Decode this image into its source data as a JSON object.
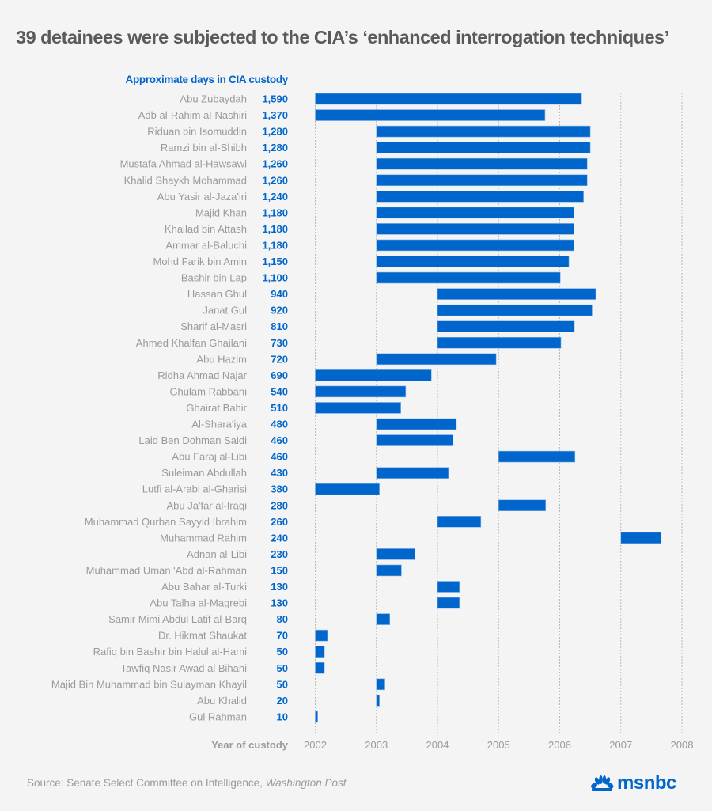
{
  "title": "39 detainees were subjected to the CIA’s ‘enhanced interrogation techniques’",
  "source": {
    "prefix": "Source: Senate Select Committee on Intelligence, ",
    "publication": "Washington Post"
  },
  "logo": {
    "text": "msnbc",
    "icon": "nbc-peacock-icon"
  },
  "colors": {
    "bar": "#0066cc",
    "value_text": "#0066cc",
    "name_text": "#9a9a9a",
    "background": "#f4f4f4",
    "title": "#5a5a5a"
  },
  "chart_data": {
    "type": "bar",
    "orientation": "horizontal-range",
    "title": "39 detainees were subjected to the CIA’s ‘enhanced interrogation techniques’",
    "value_label_header": "Approximate days in CIA custody",
    "xlabel": "Year of custody",
    "xlim": [
      2002,
      2008
    ],
    "xticks": [
      "2002",
      "2003",
      "2004",
      "2005",
      "2006",
      "2007",
      "2008"
    ],
    "grid": true,
    "rows": [
      {
        "name": "Abu Zubaydah",
        "days": "1,590",
        "start": 2002.0,
        "end": 2006.36
      },
      {
        "name": "Adb al-Rahim al-Nashiri",
        "days": "1,370",
        "start": 2002.0,
        "end": 2005.76
      },
      {
        "name": "Riduan bin Isomuddin",
        "days": "1,280",
        "start": 2003.0,
        "end": 2006.5
      },
      {
        "name": "Ramzi bin al-Shibh",
        "days": "1,280",
        "start": 2003.0,
        "end": 2006.5
      },
      {
        "name": "Mustafa Ahmad al-Hawsawi",
        "days": "1,260",
        "start": 2003.0,
        "end": 2006.45
      },
      {
        "name": "Khalid Shaykh Mohammad",
        "days": "1,260",
        "start": 2003.0,
        "end": 2006.45
      },
      {
        "name": "Abu Yasir al-Jaza'iri",
        "days": "1,240",
        "start": 2003.0,
        "end": 2006.39
      },
      {
        "name": "Majid Khan",
        "days": "1,180",
        "start": 2003.0,
        "end": 2006.23
      },
      {
        "name": "Khallad bin Attash",
        "days": "1,180",
        "start": 2003.0,
        "end": 2006.23
      },
      {
        "name": "Ammar al-Baluchi",
        "days": "1,180",
        "start": 2003.0,
        "end": 2006.23
      },
      {
        "name": "Mohd Farik bin Amin",
        "days": "1,150",
        "start": 2003.0,
        "end": 2006.15
      },
      {
        "name": "Bashir bin Lap",
        "days": "1,100",
        "start": 2003.0,
        "end": 2006.01
      },
      {
        "name": "Hassan Ghul",
        "days": "940",
        "start": 2004.0,
        "end": 2006.59
      },
      {
        "name": "Janat Gul",
        "days": "920",
        "start": 2004.0,
        "end": 2006.53
      },
      {
        "name": "Sharif al-Masri",
        "days": "810",
        "start": 2004.0,
        "end": 2006.24
      },
      {
        "name": "Ahmed Khalfan Ghailani",
        "days": "730",
        "start": 2004.0,
        "end": 2006.02
      },
      {
        "name": "Abu Hazim",
        "days": "720",
        "start": 2003.0,
        "end": 2004.96
      },
      {
        "name": "Ridha Ahmad Najar",
        "days": "690",
        "start": 2002.0,
        "end": 2003.9
      },
      {
        "name": "Ghulam Rabbani",
        "days": "540",
        "start": 2002.0,
        "end": 2003.48
      },
      {
        "name": "Ghairat Bahir",
        "days": "510",
        "start": 2002.0,
        "end": 2003.4
      },
      {
        "name": "Al-Shara'iya",
        "days": "480",
        "start": 2003.0,
        "end": 2004.31
      },
      {
        "name": "Laid Ben Dohman Saidi",
        "days": "460",
        "start": 2003.0,
        "end": 2004.25
      },
      {
        "name": "Abu Faraj al-Libi",
        "days": "460",
        "start": 2005.0,
        "end": 2006.25
      },
      {
        "name": "Suleiman Abdullah",
        "days": "430",
        "start": 2003.0,
        "end": 2004.18
      },
      {
        "name": "Lutfi al-Arabi al-Gharisi",
        "days": "380",
        "start": 2002.0,
        "end": 2003.05
      },
      {
        "name": "Abu Ja'far al-Iraqi",
        "days": "280",
        "start": 2005.0,
        "end": 2005.77
      },
      {
        "name": "Muhammad Qurban Sayyid Ibrahim",
        "days": "260",
        "start": 2004.0,
        "end": 2004.71
      },
      {
        "name": "Muhammad Rahim",
        "days": "240",
        "start": 2007.0,
        "end": 2007.66
      },
      {
        "name": "Adnan al-Libi",
        "days": "230",
        "start": 2003.0,
        "end": 2003.63
      },
      {
        "name": "Muhammad Uman 'Abd al-Rahman",
        "days": "150",
        "start": 2003.0,
        "end": 2003.41
      },
      {
        "name": "Abu Bahar al-Turki",
        "days": "130",
        "start": 2004.0,
        "end": 2004.36
      },
      {
        "name": "Abu Talha al-Magrebi",
        "days": "130",
        "start": 2004.0,
        "end": 2004.36
      },
      {
        "name": "Samir Mimi Abdul Latif al-Barq",
        "days": "80",
        "start": 2003.0,
        "end": 2003.22
      },
      {
        "name": "Dr. Hikmat Shaukat",
        "days": "70",
        "start": 2002.0,
        "end": 2002.2
      },
      {
        "name": "Rafiq bin Bashir bin Halul al-Hami",
        "days": "50",
        "start": 2002.0,
        "end": 2002.15
      },
      {
        "name": "Tawfiq Nasir Awad al Bihani",
        "days": "50",
        "start": 2002.0,
        "end": 2002.15
      },
      {
        "name": "Majid Bin Muhammad bin Sulayman Khayil",
        "days": "50",
        "start": 2003.0,
        "end": 2003.14
      },
      {
        "name": "Abu Khalid",
        "days": "20",
        "start": 2003.0,
        "end": 2003.05
      },
      {
        "name": "Gul Rahman",
        "days": "10",
        "start": 2002.0,
        "end": 2002.04
      }
    ]
  }
}
